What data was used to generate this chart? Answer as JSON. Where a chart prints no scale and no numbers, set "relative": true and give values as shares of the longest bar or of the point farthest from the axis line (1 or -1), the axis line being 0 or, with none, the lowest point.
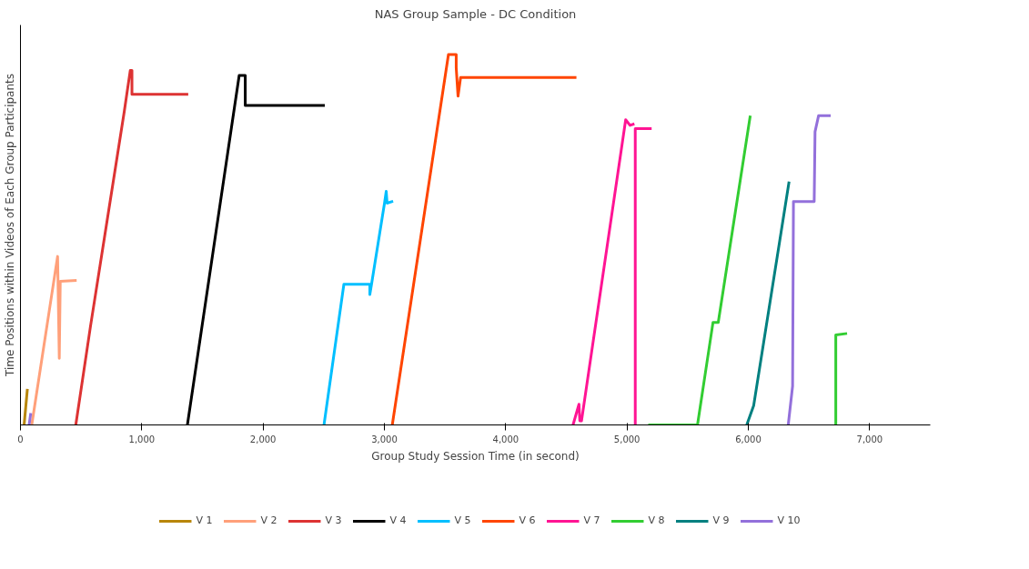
{
  "chart_data": {
    "type": "line",
    "title": "NAS Group Sample - DC Condition",
    "xlabel": "Group Study Session Time (in second)",
    "ylabel": "Time Positions within Videos of Each Group Participants",
    "relative": true,
    "xlim": [
      0,
      7500
    ],
    "xticks": [
      0,
      {
        "value": 1000,
        "label": "1,000"
      },
      {
        "value": 2000,
        "label": "2,000"
      },
      {
        "value": 3000,
        "label": "3,000"
      },
      {
        "value": 4000,
        "label": "4,000"
      },
      {
        "value": 5000,
        "label": "5,000"
      },
      {
        "value": 6000,
        "label": "6,000"
      },
      {
        "value": 7000,
        "label": "7,000"
      }
    ],
    "grid": false,
    "legend": "bottom",
    "marker": "none",
    "line_style": "solid",
    "series": [
      {
        "name": "V 1",
        "color": "#b8860b",
        "x": [
          30,
          57
        ],
        "values": [
          0,
          0.097
        ]
      },
      {
        "name": "V 2",
        "color": "#ffa07a",
        "x": [
          93,
          306,
          320,
          328,
          328,
          463
        ],
        "values": [
          0,
          0.455,
          0.18,
          0.388,
          0.388,
          0.39
        ]
      },
      {
        "name": "V 3",
        "color": "#dd3333",
        "x": [
          456,
          577,
          855,
          905,
          919,
          919,
          1383
        ],
        "values": [
          0,
          0.266,
          0.845,
          0.957,
          0.957,
          0.893,
          0.893
        ]
      },
      {
        "name": "V 4",
        "color": "#000000",
        "x": [
          1376,
          1803,
          1853,
          1853,
          2509
        ],
        "values": [
          0,
          0.944,
          0.944,
          0.863,
          0.863
        ]
      },
      {
        "name": "V 5",
        "color": "#00bfff",
        "x": [
          2502,
          2666,
          2880,
          2880,
          2894,
          3001,
          3015,
          3022,
          3072
        ],
        "values": [
          0,
          0.38,
          0.38,
          0.352,
          0.38,
          0.599,
          0.631,
          0.599,
          0.604
        ]
      },
      {
        "name": "V 6",
        "color": "#ff4500",
        "x": [
          3065,
          3528,
          3592,
          3592,
          3607,
          3628,
          4583
        ],
        "values": [
          0,
          1.0,
          1.0,
          0.964,
          0.888,
          0.938,
          0.938
        ]
      },
      {
        "name": "V 7",
        "color": "#ff1493",
        "x": [
          4555,
          4604,
          4611,
          4625,
          4989,
          5025,
          5061,
          null,
          5068,
          5068,
          5203
        ],
        "values": [
          0,
          0.056,
          0.011,
          0.011,
          0.824,
          0.809,
          0.813,
          null,
          0,
          0.8,
          0.8
        ]
      },
      {
        "name": "V 8",
        "color": "#32cd32",
        "x": [
          5175,
          5581,
          5709,
          5752,
          6016,
          null,
          6721,
          6721,
          6814
        ],
        "values": [
          0,
          0,
          0.277,
          0.277,
          0.835,
          null,
          0,
          0.243,
          0.247
        ]
      },
      {
        "name": "V 9",
        "color": "#008080",
        "x": [
          5987,
          6044,
          6336
        ],
        "values": [
          0,
          0.052,
          0.657
        ]
      },
      {
        "name": "V 10",
        "color": "#9370db",
        "x": [
          71,
          85,
          null,
          6329,
          6365,
          6372,
          6543,
          6550,
          6579,
          6679
        ],
        "values": [
          0,
          0.032,
          null,
          0,
          0.105,
          0.603,
          0.603,
          0.792,
          0.835,
          0.835
        ]
      }
    ]
  }
}
